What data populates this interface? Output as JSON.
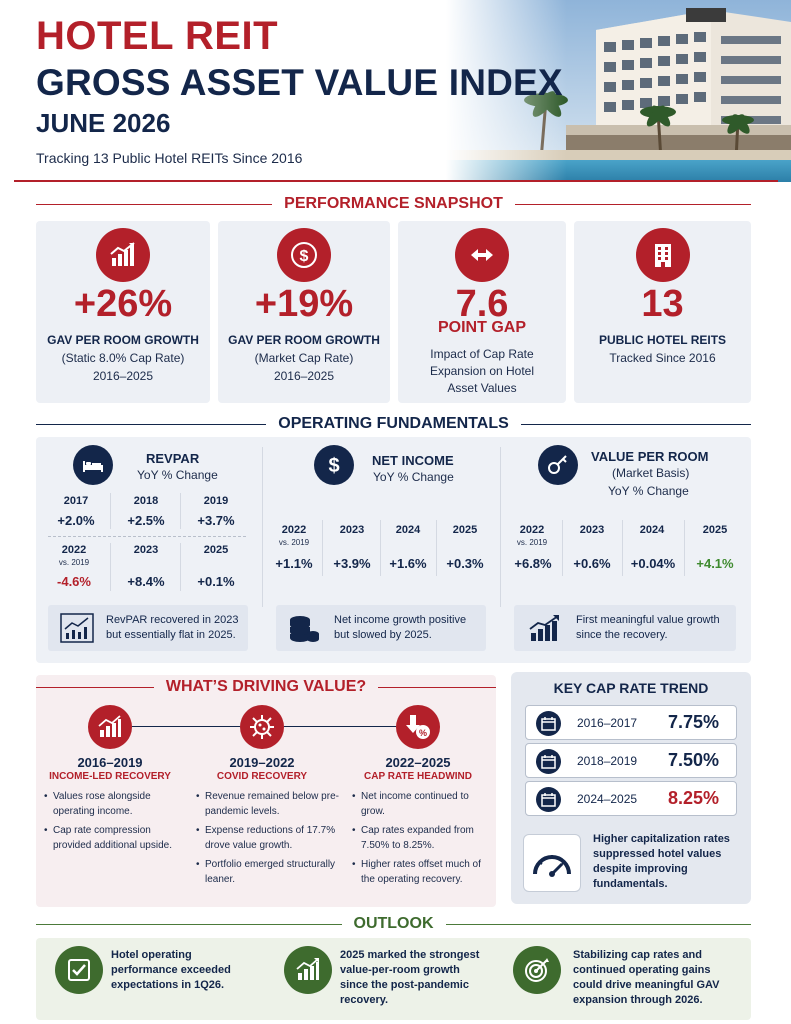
{
  "header": {
    "title_line1": "HOTEL REIT",
    "title_line2": "GROSS ASSET VALUE INDEX",
    "title_line3": "JUNE 2026",
    "subtitle": "Tracking 13 Public Hotel REITs Since 2016"
  },
  "colors": {
    "accent_red": "#b3202a",
    "navy": "#13264a",
    "green": "#3e6b2e",
    "positive_green": "#3e8a2e"
  },
  "snapshot": {
    "heading": "PERFORMANCE SNAPSHOT",
    "cards": [
      {
        "icon": "bar-chart-up-icon",
        "big": "+26%",
        "label": "GAV PER ROOM GROWTH",
        "line1": "(Static 8.0% Cap Rate)",
        "line2": "2016–2025"
      },
      {
        "icon": "dollar-coin-icon",
        "big": "+19%",
        "label": "GAV PER ROOM GROWTH",
        "line1": "(Market Cap Rate)",
        "line2": "2016–2025"
      },
      {
        "icon": "double-arrow-icon",
        "big": "7.6",
        "sub": "POINT GAP",
        "line1": "Impact of Cap Rate",
        "line2": "Expansion on Hotel",
        "line3": "Asset Values"
      },
      {
        "icon": "building-icon",
        "big": "13",
        "label": "PUBLIC HOTEL REITS",
        "line1": "Tracked Since 2016"
      }
    ]
  },
  "operating": {
    "heading": "OPERATING FUNDAMENTALS",
    "revpar": {
      "icon": "bed-icon",
      "title": "REVPAR",
      "subtitle": "YoY % Change",
      "row1": [
        {
          "year": "2017",
          "value": "+2.0%"
        },
        {
          "year": "2018",
          "value": "+2.5%"
        },
        {
          "year": "2019",
          "value": "+3.7%"
        }
      ],
      "row2": [
        {
          "year": "2022",
          "note": "vs. 2019",
          "value": "-4.6%"
        },
        {
          "year": "2023",
          "value": "+8.4%"
        },
        {
          "year": "2025",
          "value": "+0.1%"
        }
      ],
      "note": "RevPAR recovered in 2023 but essentially flat in 2025."
    },
    "net_income": {
      "icon": "dollar-icon",
      "title": "NET INCOME",
      "subtitle": "YoY % Change",
      "cols": [
        {
          "year": "2022",
          "note": "vs. 2019",
          "value": "+1.1%"
        },
        {
          "year": "2023",
          "value": "+3.9%"
        },
        {
          "year": "2024",
          "value": "+1.6%"
        },
        {
          "year": "2025",
          "value": "+0.3%"
        }
      ],
      "note": "Net income growth positive but slowed by 2025."
    },
    "value_per_room": {
      "icon": "key-icon",
      "title": "VALUE PER ROOM",
      "subtitle1": "(Market Basis)",
      "subtitle2": "YoY % Change",
      "cols": [
        {
          "year": "2022",
          "note": "vs. 2019",
          "value": "+6.8%"
        },
        {
          "year": "2023",
          "value": "+0.6%"
        },
        {
          "year": "2024",
          "value": "+0.04%"
        },
        {
          "year": "2025",
          "value": "+4.1%"
        }
      ],
      "note": "First meaningful value growth since the recovery."
    }
  },
  "driving": {
    "heading": "WHAT’S DRIVING VALUE?",
    "phases": [
      {
        "icon": "bar-chart-up-icon",
        "period": "2016–2019",
        "phase": "INCOME-LED RECOVERY",
        "bullets": [
          "Values rose alongside operating income.",
          "Cap rate compression provided additional upside."
        ]
      },
      {
        "icon": "virus-icon",
        "period": "2019–2022",
        "phase": "COVID RECOVERY",
        "bullets": [
          "Revenue remained below pre-pandemic levels.",
          "Expense reductions of 17.7% drove value growth.",
          "Portfolio emerged structurally leaner."
        ]
      },
      {
        "icon": "down-arrow-percent-icon",
        "period": "2022–2025",
        "phase": "CAP RATE HEADWIND",
        "bullets": [
          "Net income continued to grow.",
          "Cap rates expanded from 7.50% to 8.25%.",
          "Higher rates offset much of the operating recovery."
        ]
      }
    ]
  },
  "cap_rate": {
    "title": "KEY CAP RATE TREND",
    "rows": [
      {
        "period": "2016–2017",
        "rate": "7.75%"
      },
      {
        "period": "2018–2019",
        "rate": "7.50%"
      },
      {
        "period": "2024–2025",
        "rate": "8.25%"
      }
    ],
    "note": "Higher capitalization rates suppressed hotel values despite improving fundamentals."
  },
  "outlook": {
    "heading": "OUTLOOK",
    "items": [
      {
        "icon": "checkbox-icon",
        "text": "Hotel operating performance exceeded expectations in 1Q26."
      },
      {
        "icon": "growth-chart-icon",
        "text": "2025 marked the strongest value-per-room growth since the post-pandemic recovery."
      },
      {
        "icon": "target-icon",
        "text": "Stabilizing cap rates and continued operating gains could drive meaningful GAV expansion through 2026."
      }
    ]
  }
}
